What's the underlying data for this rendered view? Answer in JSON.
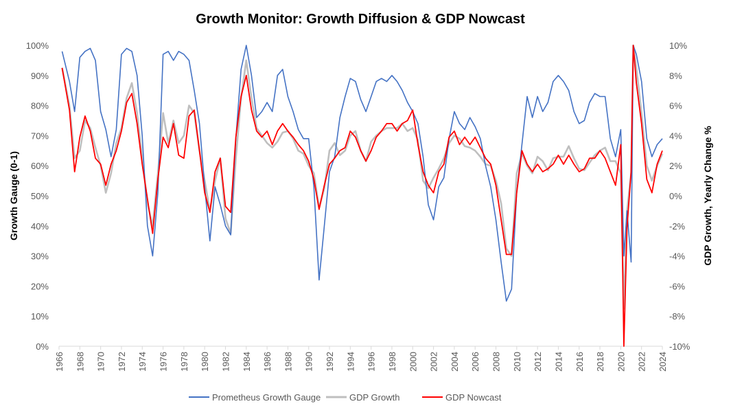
{
  "chart_data": {
    "type": "line",
    "title": "Growth Monitor: Growth Diffusion & GDP Nowcast",
    "xlabel": "",
    "ylabel_left": "Growth Gauge (0-1)",
    "ylabel_right": "GDP Growth, Yearly Change %",
    "xlim": [
      1966,
      2024
    ],
    "ylim_left": [
      0,
      100
    ],
    "ylim_right": [
      -10,
      10
    ],
    "x_ticks": [
      "1966",
      "1968",
      "1970",
      "1972",
      "1974",
      "1976",
      "1978",
      "1980",
      "1982",
      "1984",
      "1986",
      "1988",
      "1990",
      "1992",
      "1994",
      "1996",
      "1998",
      "2000",
      "2002",
      "2004",
      "2006",
      "2008",
      "2010",
      "2012",
      "2014",
      "2016",
      "2018",
      "2020",
      "2022",
      "2024"
    ],
    "y_ticks_left": [
      "0%",
      "10%",
      "20%",
      "30%",
      "40%",
      "50%",
      "60%",
      "70%",
      "80%",
      "90%",
      "100%"
    ],
    "y_ticks_right": [
      "-10%",
      "-8%",
      "-6%",
      "-4%",
      "-2%",
      "0%",
      "2%",
      "4%",
      "6%",
      "8%",
      "10%"
    ],
    "grid": false,
    "legend_position": "bottom",
    "colors": {
      "gauge": "#4472C4",
      "gdp": "#BFBFBF",
      "nowcast": "#FF0000"
    },
    "series": [
      {
        "name": "Prometheus Growth Gauge",
        "axis": "left",
        "x": [
          1966.3,
          1967,
          1967.5,
          1968,
          1968.5,
          1969,
          1969.5,
          1970,
          1970.5,
          1971,
          1971.5,
          1972,
          1972.5,
          1973,
          1973.5,
          1974,
          1974.5,
          1975,
          1975.5,
          1976,
          1976.5,
          1977,
          1977.5,
          1978,
          1978.5,
          1979,
          1979.5,
          1980,
          1980.5,
          1981,
          1981.5,
          1982,
          1982.5,
          1983,
          1983.5,
          1984,
          1984.5,
          1985,
          1985.5,
          1986,
          1986.5,
          1987,
          1987.5,
          1988,
          1988.5,
          1989,
          1989.5,
          1990,
          1990.5,
          1991,
          1991.5,
          1992,
          1992.5,
          1993,
          1993.5,
          1994,
          1994.5,
          1995,
          1995.5,
          1996,
          1996.5,
          1997,
          1997.5,
          1998,
          1998.5,
          1999,
          1999.5,
          2000,
          2000.5,
          2001,
          2001.5,
          2002,
          2002.5,
          2003,
          2003.5,
          2004,
          2004.5,
          2005,
          2005.5,
          2006,
          2006.5,
          2007,
          2007.5,
          2008,
          2008.5,
          2009,
          2009.5,
          2010,
          2010.5,
          2011,
          2011.5,
          2012,
          2012.5,
          2013,
          2013.5,
          2014,
          2014.5,
          2015,
          2015.5,
          2016,
          2016.5,
          2017,
          2017.5,
          2018,
          2018.5,
          2019,
          2019.5,
          2020,
          2020.3,
          2020.6,
          2021,
          2021.2,
          2021.5,
          2022,
          2022.5,
          2023,
          2023.5,
          2024
        ],
        "values": [
          98,
          88,
          78,
          96,
          98,
          99,
          95,
          78,
          72,
          63,
          72,
          97,
          99,
          98,
          90,
          70,
          40,
          30,
          51,
          97,
          98,
          95,
          98,
          97,
          95,
          85,
          74,
          53,
          35,
          53,
          47,
          40,
          37,
          69,
          92,
          100,
          90,
          76,
          78,
          81,
          78,
          90,
          92,
          83,
          78,
          72,
          69,
          69,
          53,
          22,
          40,
          58,
          63,
          76,
          83,
          89,
          88,
          82,
          78,
          83,
          88,
          89,
          88,
          90,
          88,
          85,
          81,
          78,
          74,
          63,
          47,
          42,
          53,
          56,
          69,
          78,
          74,
          72,
          76,
          73,
          69,
          60,
          53,
          42,
          28,
          15,
          19,
          51,
          67,
          83,
          76,
          83,
          78,
          81,
          88,
          90,
          88,
          85,
          78,
          74,
          75,
          81,
          84,
          83,
          83,
          69,
          63,
          72,
          30,
          45,
          28,
          100,
          97,
          88,
          69,
          63,
          67,
          69
        ]
      },
      {
        "name": "GDP Growth",
        "axis": "right",
        "x": [
          1966.3,
          1967,
          1967.5,
          1968,
          1968.5,
          1969,
          1969.5,
          1970,
          1970.5,
          1971,
          1971.5,
          1972,
          1972.5,
          1973,
          1973.5,
          1974,
          1974.5,
          1975,
          1975.5,
          1976,
          1976.5,
          1977,
          1977.5,
          1978,
          1978.5,
          1979,
          1979.5,
          1980,
          1980.5,
          1981,
          1981.5,
          1982,
          1982.5,
          1983,
          1983.5,
          1984,
          1984.5,
          1985,
          1985.5,
          1986,
          1986.5,
          1987,
          1987.5,
          1988,
          1988.5,
          1989,
          1989.5,
          1990,
          1990.5,
          1991,
          1991.5,
          1992,
          1992.5,
          1993,
          1993.5,
          1994,
          1994.5,
          1995,
          1995.5,
          1996,
          1996.5,
          1997,
          1997.5,
          1998,
          1998.5,
          1999,
          1999.5,
          2000,
          2000.5,
          2001,
          2001.5,
          2002,
          2002.5,
          2003,
          2003.5,
          2004,
          2004.5,
          2005,
          2005.5,
          2006,
          2006.5,
          2007,
          2007.5,
          2008,
          2008.5,
          2009,
          2009.5,
          2010,
          2010.5,
          2011,
          2011.5,
          2012,
          2012.5,
          2013,
          2013.5,
          2014,
          2014.5,
          2015,
          2015.5,
          2016,
          2016.5,
          2017,
          2017.5,
          2018,
          2018.5,
          2019,
          2019.5,
          2020,
          2020.3,
          2020.6,
          2021,
          2021.2,
          2021.5,
          2022,
          2022.5,
          2023,
          2023.5,
          2024
        ],
        "values": [
          8.5,
          6.0,
          2.5,
          3.0,
          5.0,
          4.5,
          3.2,
          2.0,
          0.2,
          1.5,
          3.5,
          4.5,
          6.5,
          7.5,
          5.5,
          2.5,
          -0.5,
          -2.0,
          1.5,
          5.5,
          3.5,
          5.0,
          3.5,
          4.0,
          6.0,
          5.5,
          3.0,
          1.0,
          -1.0,
          1.0,
          2.5,
          -1.5,
          -2.5,
          2.5,
          6.5,
          9.0,
          6.5,
          4.5,
          4.0,
          3.5,
          3.2,
          3.6,
          4.2,
          4.3,
          3.8,
          3.0,
          2.8,
          2.0,
          1.5,
          -0.8,
          0.5,
          3.0,
          3.5,
          2.7,
          3.0,
          4.0,
          4.3,
          3.0,
          2.3,
          3.6,
          4.0,
          4.3,
          4.5,
          4.5,
          4.5,
          4.8,
          4.3,
          4.5,
          3.7,
          1.0,
          0.5,
          1.2,
          1.8,
          2.5,
          3.5,
          4.0,
          3.8,
          3.3,
          3.2,
          3.0,
          2.6,
          2.1,
          2.0,
          1.0,
          -0.5,
          -3.5,
          -4.0,
          1.5,
          2.8,
          2.0,
          1.5,
          2.6,
          2.3,
          1.7,
          2.5,
          2.6,
          2.6,
          3.3,
          2.5,
          1.8,
          1.7,
          2.2,
          2.7,
          3.0,
          3.2,
          2.3,
          2.3,
          1.5,
          -7.5,
          -1.0,
          1.5,
          10,
          8.5,
          5.5,
          2.0,
          1.0,
          2.0,
          2.8
        ]
      },
      {
        "name": "GDP Nowcast",
        "axis": "right",
        "x": [
          1966.3,
          1967,
          1967.5,
          1968,
          1968.5,
          1969,
          1969.5,
          1970,
          1970.5,
          1971,
          1971.5,
          1972,
          1972.5,
          1973,
          1973.5,
          1974,
          1974.5,
          1975,
          1975.5,
          1976,
          1976.5,
          1977,
          1977.5,
          1978,
          1978.5,
          1979,
          1979.5,
          1980,
          1980.5,
          1981,
          1981.5,
          1982,
          1982.5,
          1983,
          1983.5,
          1984,
          1984.5,
          1985,
          1985.5,
          1986,
          1986.5,
          1987,
          1987.5,
          1988,
          1988.5,
          1989,
          1989.5,
          1990,
          1990.5,
          1991,
          1991.5,
          1992,
          1992.5,
          1993,
          1993.5,
          1994,
          1994.5,
          1995,
          1995.5,
          1996,
          1996.5,
          1997,
          1997.5,
          1998,
          1998.5,
          1999,
          1999.5,
          2000,
          2000.5,
          2001,
          2001.5,
          2002,
          2002.5,
          2003,
          2003.5,
          2004,
          2004.5,
          2005,
          2005.5,
          2006,
          2006.5,
          2007,
          2007.5,
          2008,
          2008.5,
          2009,
          2009.5,
          2010,
          2010.5,
          2011,
          2011.5,
          2012,
          2012.5,
          2013,
          2013.5,
          2014,
          2014.5,
          2015,
          2015.5,
          2016,
          2016.5,
          2017,
          2017.5,
          2018,
          2018.5,
          2019,
          2019.5,
          2020,
          2020.3,
          2020.6,
          2021,
          2021.2,
          2021.5,
          2022,
          2022.5,
          2023,
          2023.5,
          2024
        ],
        "values": [
          8.5,
          5.7,
          1.6,
          3.9,
          5.3,
          4.3,
          2.5,
          2.1,
          0.7,
          2.1,
          3.0,
          4.3,
          6.2,
          6.8,
          4.8,
          2.1,
          -0.2,
          -2.5,
          1.1,
          3.9,
          3.2,
          4.8,
          2.7,
          2.5,
          5.3,
          5.7,
          3.0,
          0.2,
          -1.1,
          1.6,
          2.5,
          -0.7,
          -1.1,
          3.9,
          6.6,
          8.0,
          5.7,
          4.3,
          3.9,
          4.3,
          3.4,
          4.3,
          4.8,
          4.3,
          3.9,
          3.4,
          3.0,
          2.3,
          1.1,
          -0.9,
          0.7,
          2.1,
          2.5,
          3.0,
          3.2,
          4.3,
          3.9,
          3.0,
          2.3,
          3.0,
          3.9,
          4.3,
          4.8,
          4.8,
          4.3,
          4.8,
          5.0,
          5.7,
          3.4,
          1.6,
          0.7,
          0.2,
          1.6,
          2.1,
          3.9,
          4.3,
          3.4,
          3.9,
          3.4,
          3.9,
          3.2,
          2.5,
          2.1,
          0.7,
          -1.6,
          -3.9,
          -3.9,
          0.2,
          3.0,
          2.1,
          1.6,
          2.1,
          1.6,
          1.8,
          2.1,
          2.7,
          2.1,
          2.7,
          2.1,
          1.6,
          1.8,
          2.5,
          2.5,
          3.0,
          2.5,
          1.6,
          0.7,
          3.4,
          -10,
          -2.1,
          1.6,
          10,
          7.5,
          4.8,
          1.1,
          0.2,
          2.1,
          3.0
        ]
      }
    ]
  }
}
